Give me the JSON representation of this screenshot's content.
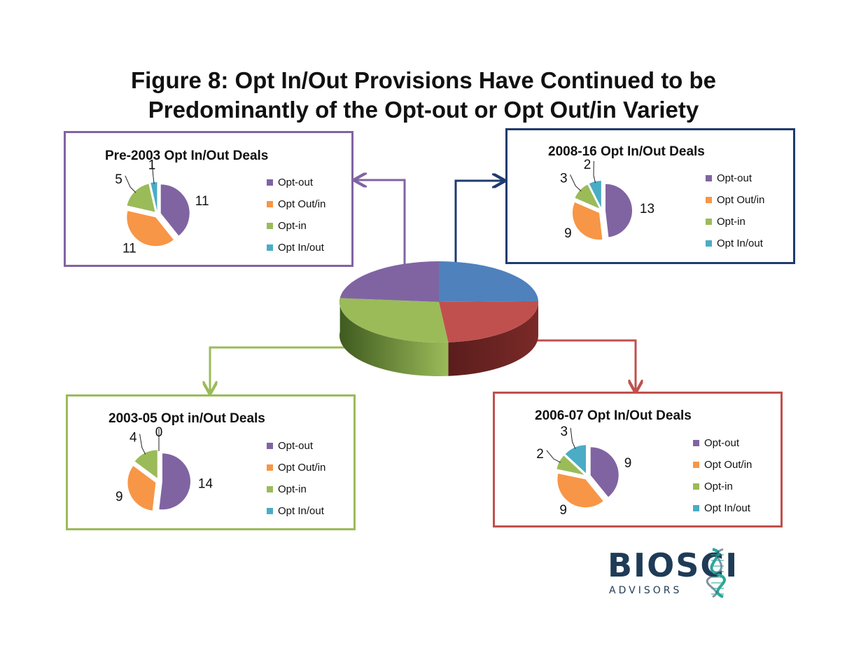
{
  "title": {
    "line1": "Figure 8:  Opt In/Out Provisions Have Continued to be",
    "line2": "Predominantly of the Opt-out or Opt Out/in Variety"
  },
  "colors": {
    "opt_out": "#8064a2",
    "opt_out_in": "#f79646",
    "opt_in": "#9bbb59",
    "opt_in_out": "#4bacc6",
    "center_blue": "#4f81bd",
    "center_red": "#c0504d",
    "center_green": "#9bbb59",
    "center_purple": "#8064a2",
    "logo_accent": "#2aa79b"
  },
  "logo": {
    "name": "BIOSCI",
    "tagline": "ADVISORS"
  },
  "chart_data": [
    {
      "type": "pie",
      "title": "Pre-2003 Opt In/Out Deals",
      "categories": [
        "Opt-out",
        "Opt Out/in",
        "Opt-in",
        "Opt In/out"
      ],
      "values": [
        11,
        11,
        5,
        1
      ],
      "legend": "right",
      "panel_color": "#8064a2"
    },
    {
      "type": "pie",
      "title": "2008-16 Opt In/Out Deals",
      "categories": [
        "Opt-out",
        "Opt Out/in",
        "Opt-in",
        "Opt In/out"
      ],
      "values": [
        13,
        9,
        3,
        2
      ],
      "legend": "right",
      "panel_color": "#1f3b6f"
    },
    {
      "type": "pie",
      "title": "2003-05 Opt in/Out Deals",
      "categories": [
        "Opt-out",
        "Opt Out/in",
        "Opt-in",
        "Opt In/out"
      ],
      "values": [
        14,
        9,
        4,
        0
      ],
      "legend": "right",
      "panel_color": "#9bbb59"
    },
    {
      "type": "pie",
      "title": "2006-07 Opt In/Out Deals",
      "categories": [
        "Opt-out",
        "Opt Out/in",
        "Opt-in",
        "Opt In/out"
      ],
      "values": [
        9,
        9,
        2,
        3
      ],
      "legend": "right",
      "panel_color": "#c0504d"
    }
  ]
}
